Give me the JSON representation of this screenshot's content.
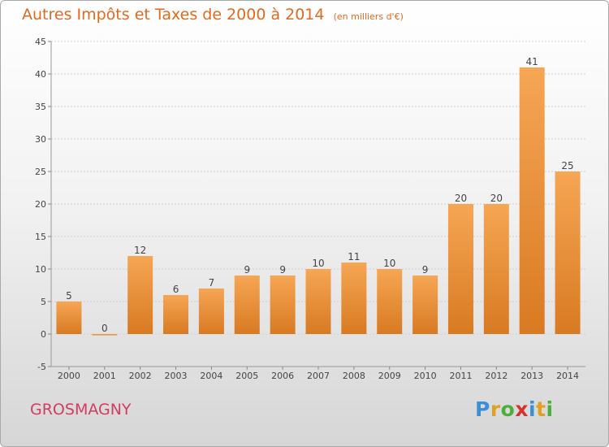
{
  "header": {
    "title": "Autres Impôts et Taxes de 2000 à 2014",
    "subtitle": "(en milliers d'€)"
  },
  "footer": {
    "town": "GROSMAGNY",
    "logo": [
      "P",
      "r",
      "o",
      "x",
      "i",
      "t",
      "i"
    ]
  },
  "colors": {
    "accent": "#e06a1f",
    "bar_light": "#f6a654",
    "bar_dark": "#d87a22",
    "town": "#d23b62"
  },
  "chart_data": {
    "type": "bar",
    "title": "Autres Impôts et Taxes de 2000 à 2014",
    "subtitle": "(en milliers d'€)",
    "categories": [
      "2000",
      "2001",
      "2002",
      "2003",
      "2004",
      "2005",
      "2006",
      "2007",
      "2008",
      "2009",
      "2010",
      "2011",
      "2012",
      "2013",
      "2014"
    ],
    "values": [
      5,
      0,
      12,
      6,
      7,
      9,
      9,
      10,
      11,
      10,
      9,
      20,
      20,
      41,
      25
    ],
    "value_labels": [
      "5",
      "0",
      "12",
      "6",
      "7",
      "9",
      "9",
      "10",
      "11",
      "10",
      "9",
      "20",
      "20",
      "41",
      "25"
    ],
    "ylim": [
      -5,
      45
    ],
    "yticks": [
      -5,
      0,
      5,
      10,
      15,
      20,
      25,
      30,
      35,
      40,
      45
    ],
    "grid": true
  }
}
